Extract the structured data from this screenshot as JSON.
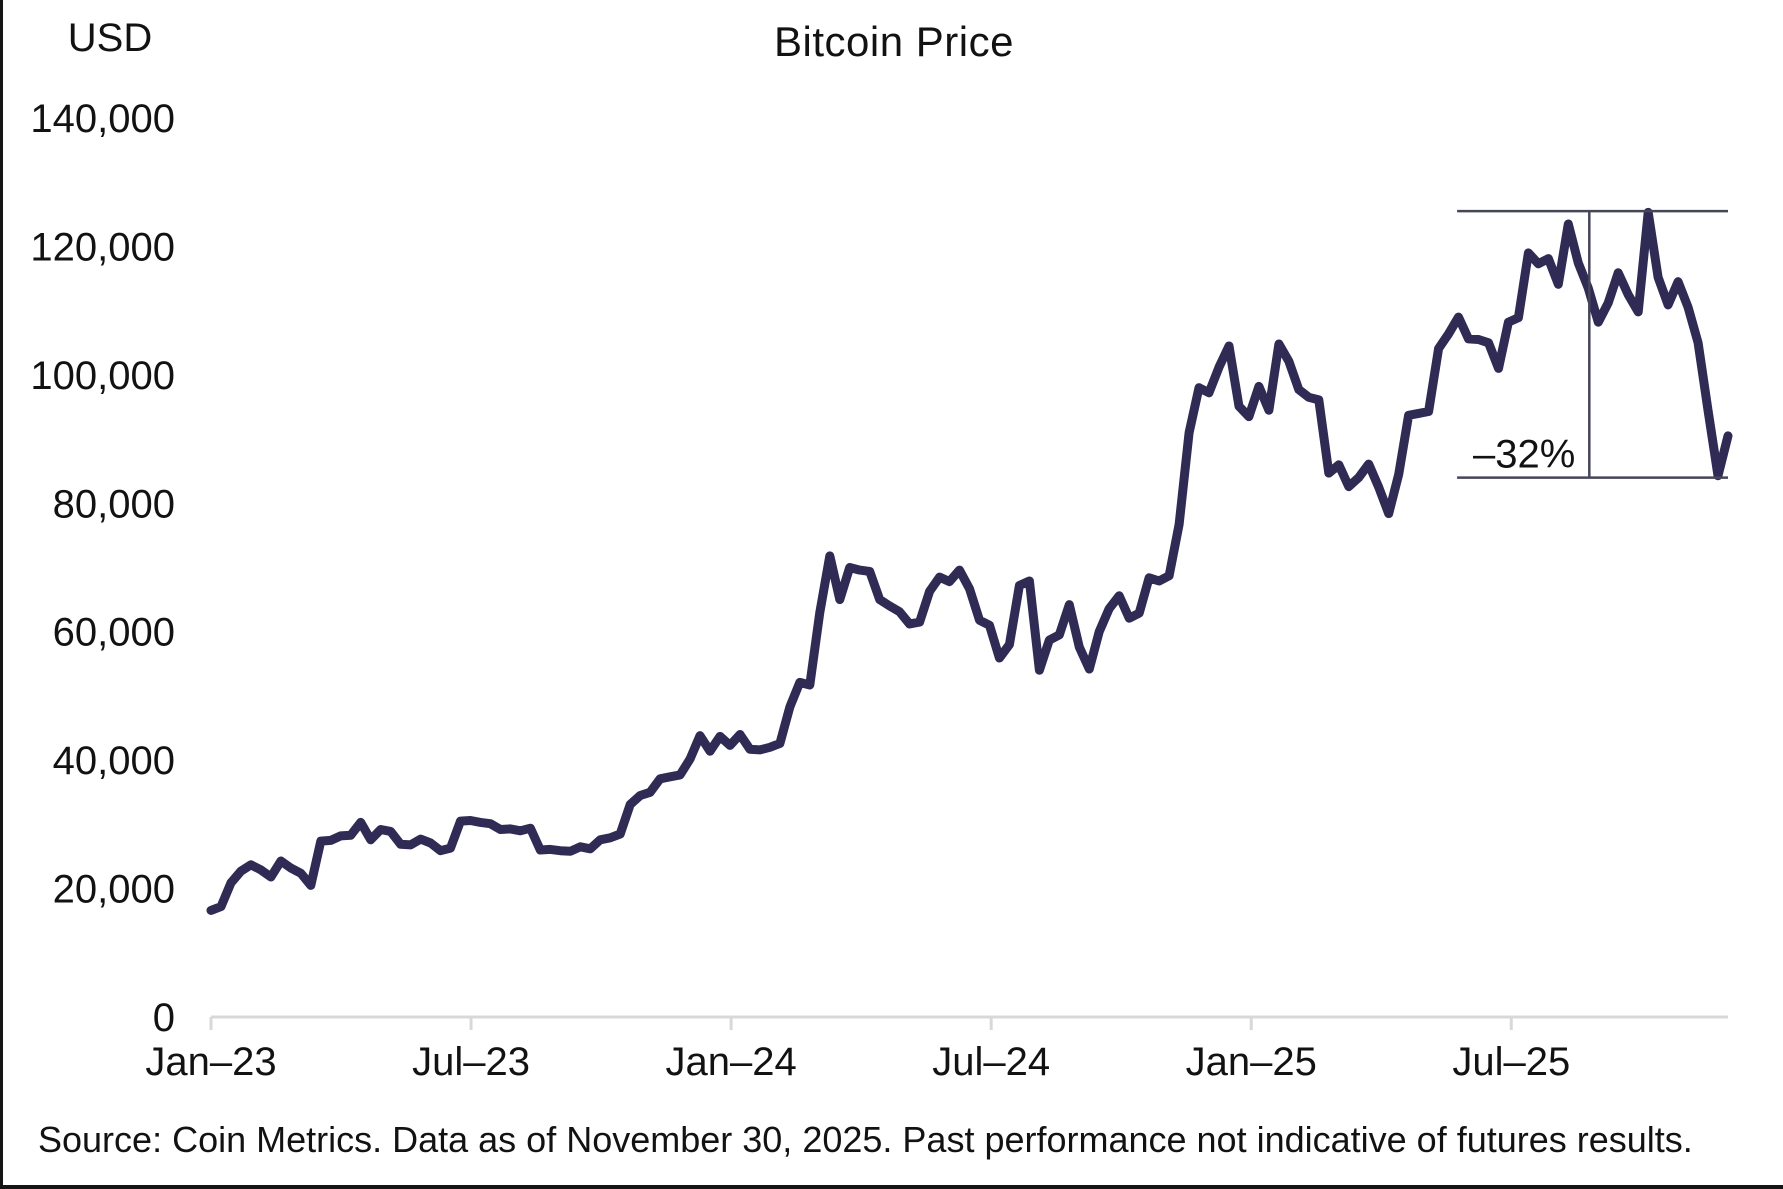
{
  "chart_data": {
    "type": "line",
    "title": "Bitcoin Price",
    "unit_label": "USD",
    "source_note": "Source: Coin Metrics. Data as of November 30, 2025. Past performance not indicative of futures results.",
    "grid": false,
    "legend": false,
    "ylim": [
      0,
      140000
    ],
    "x_span_months": 35,
    "x_start": "Jan-2023",
    "x_end": "Nov-30-2025",
    "y_ticks": [
      {
        "value": 0,
        "label": "0"
      },
      {
        "value": 20000,
        "label": "20,000"
      },
      {
        "value": 40000,
        "label": "40,000"
      },
      {
        "value": 60000,
        "label": "60,000"
      },
      {
        "value": 80000,
        "label": "80,000"
      },
      {
        "value": 100000,
        "label": "100,000"
      },
      {
        "value": 120000,
        "label": "120,000"
      },
      {
        "value": 140000,
        "label": "140,000"
      }
    ],
    "x_ticks": [
      {
        "month": 0,
        "label": "Jan–23"
      },
      {
        "month": 6,
        "label": "Jul–23"
      },
      {
        "month": 12,
        "label": "Jan–24"
      },
      {
        "month": 18,
        "label": "Jul–24"
      },
      {
        "month": 24,
        "label": "Jan–25"
      },
      {
        "month": 30,
        "label": "Jul–25"
      }
    ],
    "annotation": {
      "label": "–32%",
      "drop_pct": -32,
      "high_value": 125500,
      "low_value": 84000,
      "from_month": 28.75,
      "marker_month": 31.8,
      "to_month": 35
    },
    "series": [
      {
        "name": "Bitcoin price (USD)",
        "cadence": "weekly",
        "start_date": "2023-01-01",
        "end_date": "2025-11-30",
        "values": [
          16600,
          17200,
          20900,
          22700,
          23700,
          22900,
          21800,
          24300,
          23200,
          22400,
          20500,
          27400,
          27500,
          28200,
          28300,
          30300,
          27600,
          29200,
          28900,
          26900,
          26800,
          27700,
          27100,
          25900,
          26300,
          30500,
          30600,
          30300,
          30100,
          29200,
          29300,
          29000,
          29400,
          26000,
          26100,
          25900,
          25800,
          26500,
          26200,
          27600,
          27900,
          28500,
          33100,
          34500,
          35000,
          37100,
          37400,
          37700,
          40200,
          43800,
          41400,
          43700,
          42300,
          44000,
          41700,
          41600,
          42000,
          42600,
          48300,
          52100,
          51700,
          63000,
          71800,
          65000,
          70000,
          69600,
          69400,
          65000,
          64000,
          63100,
          61200,
          61500,
          66300,
          68500,
          67800,
          69600,
          66700,
          61800,
          61000,
          55900,
          58000,
          67200,
          67900,
          54000,
          58700,
          59500,
          64200,
          57600,
          54200,
          60000,
          63600,
          65600,
          62100,
          62900,
          68400,
          67900,
          68700,
          76700,
          91000,
          98000,
          97200,
          101200,
          104500,
          95100,
          93500,
          98200,
          94500,
          104800,
          102100,
          97700,
          96500,
          96100,
          84700,
          86000,
          82600,
          84000,
          86100,
          82500,
          78400,
          84500,
          93700,
          94000,
          94300,
          104100,
          106400,
          109000,
          105600,
          105500,
          105000,
          101000,
          108200,
          108900,
          119000,
          117300,
          118100,
          114100,
          123500,
          117400,
          113500,
          108200,
          111200,
          115900,
          112500,
          109800,
          125300,
          115200,
          110900,
          114500,
          110500,
          105000,
          94500,
          84300,
          90500
        ]
      }
    ],
    "colors": {
      "line": "#2f2b55",
      "axis": "#d8d8d8",
      "annotation_line": "#46465a",
      "text": "#121212",
      "background": "#ffffff"
    }
  }
}
